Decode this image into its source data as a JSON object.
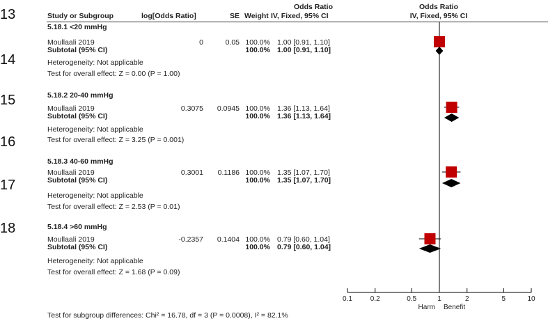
{
  "line_numbers": [
    "13",
    "14",
    "15",
    "16",
    "17",
    "18"
  ],
  "header": {
    "or_top_left": "Odds Ratio",
    "or_top_right": "Odds Ratio",
    "study": "Study or Subgroup",
    "logor": "log[Odds Ratio]",
    "se": "SE",
    "weight": "Weight",
    "ci_left": "IV, Fixed, 95% CI",
    "ci_right": "IV, Fixed, 95% CI"
  },
  "subgroups": [
    {
      "title": "5.18.1 <20 mmHg",
      "study": "Moullaali 2019",
      "logor": "0",
      "se": "0.05",
      "weight": "100.0%",
      "ci": "1.00 [0.91, 1.10]",
      "subtotal_label": "Subtotal (95% CI)",
      "subtotal_weight": "100.0%",
      "subtotal_ci": "1.00 [0.91, 1.10]",
      "heterogeneity": "Heterogeneity: Not applicable",
      "overall": "Test for overall effect: Z = 0.00 (P = 1.00)"
    },
    {
      "title": "5.18.2 20-40 mmHg",
      "study": "Moullaali 2019",
      "logor": "0.3075",
      "se": "0.0945",
      "weight": "100.0%",
      "ci": "1.36 [1.13, 1.64]",
      "subtotal_label": "Subtotal (95% CI)",
      "subtotal_weight": "100.0%",
      "subtotal_ci": "1.36 [1.13, 1.64]",
      "heterogeneity": "Heterogeneity: Not applicable",
      "overall": "Test for overall effect: Z = 3.25 (P = 0.001)"
    },
    {
      "title": "5.18.3 40-60 mmHg",
      "study": "Moullaali 2019",
      "logor": "0.3001",
      "se": "0.1186",
      "weight": "100.0%",
      "ci": "1.35 [1.07, 1.70]",
      "subtotal_label": "Subtotal (95% CI)",
      "subtotal_weight": "100.0%",
      "subtotal_ci": "1.35 [1.07, 1.70]",
      "heterogeneity": "Heterogeneity: Not applicable",
      "overall": "Test for overall effect: Z = 2.53 (P = 0.01)"
    },
    {
      "title": "5.18.4 >60 mmHg",
      "study": "Moullaali 2019",
      "logor": "-0.2357",
      "se": "0.1404",
      "weight": "100.0%",
      "ci": "0.79 [0.60, 1.04]",
      "subtotal_label": "Subtotal (95% CI)",
      "subtotal_weight": "100.0%",
      "subtotal_ci": "0.79 [0.60, 1.04]",
      "heterogeneity": "Heterogeneity: Not applicable",
      "overall": "Test for overall effect: Z = 1.68 (P = 0.09)"
    }
  ],
  "footer": "Test for subgroup differences: Chi² = 16.78, df = 3 (P = 0.0008), I² = 82.1%",
  "chart_data": {
    "type": "forest",
    "scale": "log",
    "xlim": [
      0.1,
      10
    ],
    "reference_line": 1,
    "ticks": [
      0.1,
      0.2,
      0.5,
      1,
      2,
      5,
      10
    ],
    "tick_labels": [
      "0.1",
      "0.2",
      "0.5",
      "1",
      "2",
      "5",
      "10"
    ],
    "favours_left": "Harm",
    "favours_right": "Benefit",
    "colors": {
      "study_square": "#c00000",
      "diamond": "#000000",
      "ci_line": "#000000"
    },
    "studies": [
      {
        "name": "Moullaali 2019",
        "subgroup": "5.18.1 <20 mmHg",
        "or": 1.0,
        "lower": 0.91,
        "upper": 1.1,
        "weight": 100.0
      },
      {
        "name": "Moullaali 2019",
        "subgroup": "5.18.2 20-40 mmHg",
        "or": 1.36,
        "lower": 1.13,
        "upper": 1.64,
        "weight": 100.0
      },
      {
        "name": "Moullaali 2019",
        "subgroup": "5.18.3 40-60 mmHg",
        "or": 1.35,
        "lower": 1.07,
        "upper": 1.7,
        "weight": 100.0
      },
      {
        "name": "Moullaali 2019",
        "subgroup": "5.18.4 >60 mmHg",
        "or": 0.79,
        "lower": 0.6,
        "upper": 1.04,
        "weight": 100.0
      }
    ],
    "subtotals": [
      {
        "subgroup": "5.18.1 <20 mmHg",
        "or": 1.0,
        "lower": 0.91,
        "upper": 1.1
      },
      {
        "subgroup": "5.18.2 20-40 mmHg",
        "or": 1.36,
        "lower": 1.13,
        "upper": 1.64
      },
      {
        "subgroup": "5.18.3 40-60 mmHg",
        "or": 1.35,
        "lower": 1.07,
        "upper": 1.7
      },
      {
        "subgroup": "5.18.4 >60 mmHg",
        "or": 0.79,
        "lower": 0.6,
        "upper": 1.04
      }
    ]
  }
}
